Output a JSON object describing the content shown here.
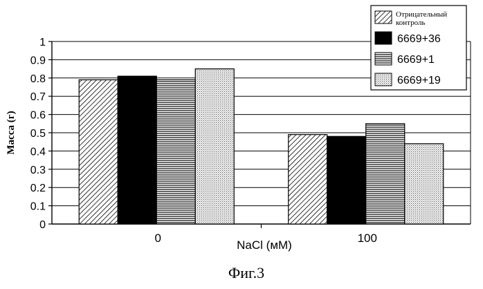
{
  "chart_data": {
    "type": "bar",
    "title": "",
    "xlabel": "NaCl (мМ)",
    "ylabel": "Масса (г)",
    "caption": "Фиг.3",
    "categories": [
      "0",
      "100"
    ],
    "ylim": [
      0,
      1
    ],
    "yticks": [
      "0",
      "0.1",
      "0.2",
      "0.3",
      "0.4",
      "0.5",
      "0.6",
      "0.7",
      "0.8",
      "0.9",
      "1"
    ],
    "grid": true,
    "legend_position": "top-right",
    "series": [
      {
        "name": "Отрицательный контроль",
        "values": [
          0.79,
          0.49
        ],
        "pattern": "diagonal-hatch"
      },
      {
        "name": "6669+36",
        "values": [
          0.81,
          0.48
        ],
        "pattern": "solid-black"
      },
      {
        "name": "6669+1",
        "values": [
          0.79,
          0.55
        ],
        "pattern": "horizontal-lines"
      },
      {
        "name": "6669+19",
        "values": [
          0.85,
          0.44
        ],
        "pattern": "dots"
      }
    ]
  }
}
